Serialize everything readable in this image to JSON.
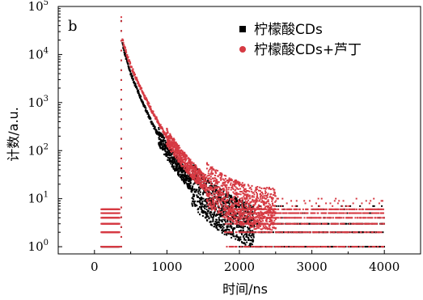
{
  "chart_data": {
    "type": "scatter",
    "panel_label": "b",
    "xlabel": "时间/ns",
    "ylabel": "计数/a.u.",
    "xlim": [
      -500,
      4500
    ],
    "ylim_log10": [
      -0.15,
      5
    ],
    "x_ticks": [
      0,
      1000,
      2000,
      3000,
      4000
    ],
    "y_ticks": [
      {
        "exp": 0,
        "base": "10",
        "sup": "0"
      },
      {
        "exp": 1,
        "base": "10",
        "sup": "1"
      },
      {
        "exp": 2,
        "base": "10",
        "sup": "2"
      },
      {
        "exp": 3,
        "base": "10",
        "sup": "3"
      },
      {
        "exp": 4,
        "base": "10",
        "sup": "4"
      },
      {
        "exp": 5,
        "base": "10",
        "sup": "5"
      }
    ],
    "y_scale": "log",
    "grid": false,
    "legend_position": "top-right",
    "series": [
      {
        "name": "柠檬酸CDs",
        "color": "#000000",
        "marker": "square",
        "peak_x": 370,
        "peak_y": 50000,
        "decay": [
          [
            385,
            17000
          ],
          [
            400,
            13000
          ],
          [
            450,
            7000
          ],
          [
            500,
            4000
          ],
          [
            600,
            1700
          ],
          [
            700,
            750
          ],
          [
            800,
            360
          ],
          [
            900,
            180
          ],
          [
            1000,
            100
          ],
          [
            1100,
            60
          ],
          [
            1200,
            38
          ],
          [
            1300,
            24
          ],
          [
            1400,
            16
          ],
          [
            1500,
            11
          ],
          [
            1600,
            8
          ],
          [
            1800,
            5
          ],
          [
            2000,
            3.5
          ],
          [
            2200,
            2.5
          ]
        ],
        "baseline_levels": [
          1,
          2,
          3
        ],
        "baseline_range": [
          2000,
          4000
        ],
        "pre_levels": [
          1
        ],
        "pre_range": [
          100,
          340
        ]
      },
      {
        "name": "柠檬酸CDs+芦丁",
        "color": "#d63a43",
        "marker": "circle",
        "peak_x": 370,
        "peak_y": 60000,
        "decay": [
          [
            385,
            22000
          ],
          [
            400,
            17000
          ],
          [
            450,
            9500
          ],
          [
            500,
            5800
          ],
          [
            600,
            2600
          ],
          [
            700,
            1250
          ],
          [
            800,
            640
          ],
          [
            900,
            340
          ],
          [
            1000,
            190
          ],
          [
            1100,
            115
          ],
          [
            1200,
            72
          ],
          [
            1300,
            47
          ],
          [
            1400,
            32
          ],
          [
            1500,
            23
          ],
          [
            1600,
            17
          ],
          [
            1800,
            11
          ],
          [
            2000,
            8
          ],
          [
            2200,
            6.5
          ],
          [
            2500,
            6
          ]
        ],
        "baseline_levels": [
          1,
          2,
          3,
          4,
          5,
          6
        ],
        "baseline_range": [
          1800,
          4000
        ],
        "pre_levels": [
          1,
          2,
          3,
          4,
          5,
          6
        ],
        "pre_range": [
          100,
          340
        ]
      }
    ]
  }
}
